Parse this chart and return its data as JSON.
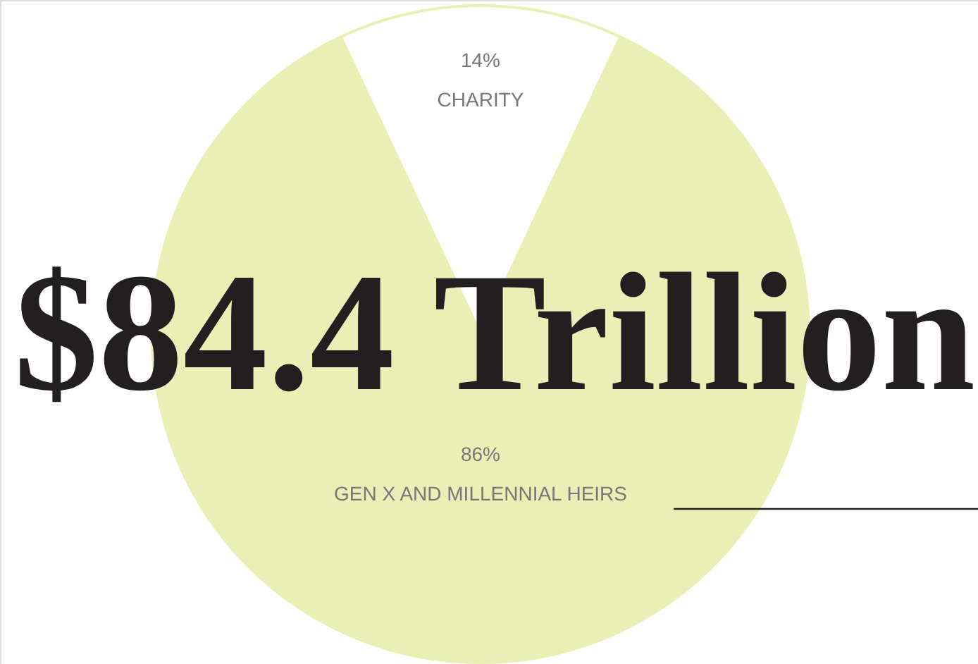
{
  "chart_data": {
    "type": "pie",
    "title": "$84.4 Trillion",
    "categories": [
      "CHARITY",
      "GEN X AND MILLENNIAL HEIRS"
    ],
    "values": [
      14,
      86
    ],
    "value_labels": [
      "14%",
      "86%"
    ],
    "colors": [
      "#ffffff",
      "#e9efb5"
    ]
  }
}
